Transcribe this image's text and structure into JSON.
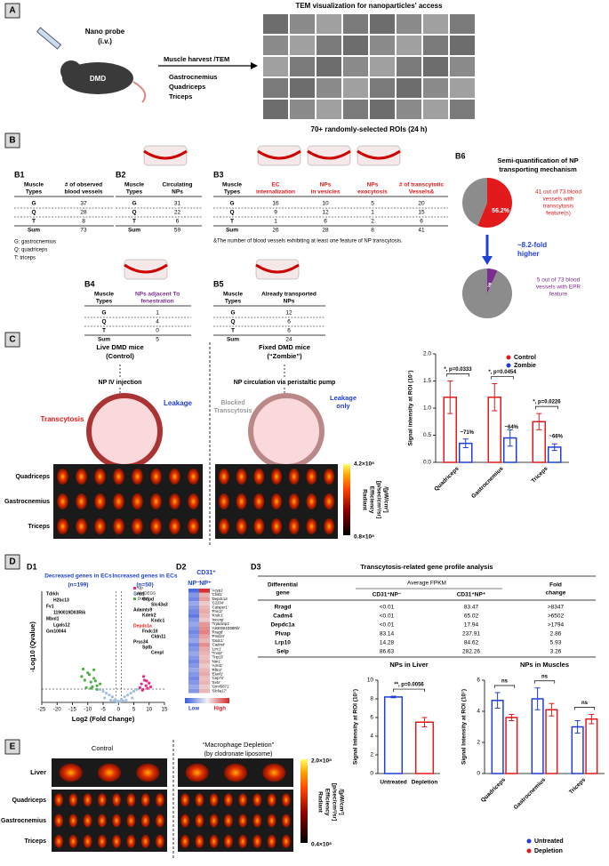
{
  "panel_labels": [
    "A",
    "B",
    "C",
    "D",
    "E"
  ],
  "A": {
    "probe": "Nano probe",
    "route": "(i.v.)",
    "mouse": "DMD",
    "arrow_text": "Muscle harvest /TEM",
    "muscles": [
      "Gastrocnemius",
      "Quadriceps",
      "Triceps"
    ],
    "tem_title": "TEM visualization for nanoparticles' access",
    "tem_caption": "70+ randomly-selected ROIs (24 h)"
  },
  "B": {
    "B1": {
      "label": "B1",
      "header": [
        [
          "Muscle",
          "Types"
        ],
        [
          "# of observed",
          "blood vessels"
        ]
      ],
      "rows": [
        [
          "G",
          37
        ],
        [
          "Q",
          28
        ],
        [
          "T",
          8
        ],
        [
          "Sum",
          73
        ]
      ],
      "notes": [
        "G: gastrocnemius",
        "Q: quadriceps",
        "T: triceps"
      ]
    },
    "B2": {
      "label": "B2",
      "header": [
        [
          "Muscle",
          "Types"
        ],
        [
          "Circulating",
          "NPs"
        ]
      ],
      "rows": [
        [
          "G",
          31
        ],
        [
          "Q",
          22
        ],
        [
          "T",
          6
        ],
        [
          "Sum",
          59
        ]
      ]
    },
    "B3": {
      "label": "B3",
      "header": [
        [
          "Muscle",
          "Types"
        ],
        [
          "EC",
          "internalization"
        ],
        [
          "NPs",
          "in vesicles"
        ],
        [
          "NPs",
          "exocytosis"
        ],
        [
          "# of transcytotic",
          "Vessels&"
        ]
      ],
      "rows": [
        [
          "G",
          16,
          10,
          5,
          20
        ],
        [
          "Q",
          9,
          12,
          1,
          15
        ],
        [
          "T",
          1,
          6,
          2,
          6
        ],
        [
          "Sum",
          26,
          28,
          8,
          41
        ]
      ],
      "note": "&The number of blood vessels exhibiting at least one feature of NP transcytosis."
    },
    "B4": {
      "label": "B4",
      "header": [
        [
          "Muscle",
          "Types"
        ],
        [
          "NPs adjacent To",
          "fenestration"
        ]
      ],
      "rows": [
        [
          "G",
          1
        ],
        [
          "Q",
          4
        ],
        [
          "T",
          0
        ],
        [
          "Sum",
          5
        ]
      ]
    },
    "B5": {
      "label": "B5",
      "header": [
        [
          "Muscle",
          "Types"
        ],
        [
          "Already transported",
          "NPs"
        ]
      ],
      "rows": [
        [
          "G",
          12
        ],
        [
          "Q",
          6
        ],
        [
          "T",
          6
        ],
        [
          "Sum",
          24
        ]
      ]
    },
    "B6": {
      "label": "B6",
      "title": [
        "Semi-quantification of NP",
        "transporting mechanism"
      ],
      "note_top": [
        "41 out of 73 blood",
        "vessels with",
        "transcytosis",
        "feature(s)"
      ],
      "fold": [
        "~8.2-fold",
        "higher"
      ],
      "note_bottom": [
        "5 out of 73 blood",
        "vessels with EPR",
        "feature"
      ]
    }
  },
  "C": {
    "left_title": [
      "Live DMD mice",
      "(Control)"
    ],
    "left_step": "NP IV injection",
    "transcytosis": "Transcytosis",
    "leakage": "Leakage",
    "right_title": [
      "Fixed DMD mice",
      "(“Zombie”)"
    ],
    "right_step": "NP circulation via peristaltic pump",
    "blocked": [
      "Blocked",
      "Transcytosis"
    ],
    "leakage_only": [
      "Leakage",
      "only"
    ],
    "rows": [
      "Quadriceps",
      "Gastrocnemius",
      "Triceps"
    ],
    "colorbar_max": "4.2×10⁸",
    "colorbar_min": "0.8×10⁸",
    "colorbar_label": [
      "Radiant",
      "Efficiency",
      "[p/sec/cm²/sr]",
      "/[µW/cm²]"
    ]
  },
  "D": {
    "D1": {
      "label": "D1",
      "left_title": "Decreased genes in ECs",
      "left_n": "(n=199)",
      "right_title": "Increased genes in ECs",
      "right_n": "(n=50)",
      "left_genes": [
        "Tdrkh",
        "H2bc13",
        "Fv1",
        "1190019D03Rik",
        "Mbnl1",
        "Lgals12",
        "Gm10044"
      ],
      "right_genes": [
        "Gnb1",
        "Gdpd",
        "Slc43a3",
        "Adamts9",
        "Kdelr2",
        "Kndc1",
        "Depdc1a",
        "Fndc10",
        "Cldn11",
        "Prss34",
        "Sptb",
        "Cenpl"
      ]
    },
    "D2": {
      "label": "D2",
      "group": "CD31⁺",
      "columns": [
        "NP⁻",
        "NP⁺"
      ],
      "genes": [
        "'Acyp1'",
        "'Chst1'",
        "'Depdc1a'",
        "'C2204'",
        "'Catsper1'",
        "'Pnrc2'",
        "'Kndc1'",
        "'Incenp'",
        "'Trp53inp1'",
        "'A930004D08Rik'",
        "'Rragd'",
        "'Prss34'",
        "'Gsdc1'",
        "'Cadm4'",
        "'Lrrc1'",
        "'Tnnt2'",
        "'Trip13'",
        "'Ntn1'",
        "'Armt1'",
        "'Rftn2'",
        "'Elavl1'",
        "'Cep72'",
        "'Setx'",
        "'Gm45871'",
        "'Slc6a17'"
      ],
      "values": [
        [
          -0.9,
          0.95
        ],
        [
          -0.6,
          0.3
        ],
        [
          -0.7,
          0.4
        ],
        [
          -0.5,
          0.2
        ],
        [
          -0.6,
          0.3
        ],
        [
          -0.7,
          0.35
        ],
        [
          -0.8,
          0.3
        ],
        [
          -0.6,
          0.2
        ],
        [
          -0.5,
          0.45
        ],
        [
          -0.6,
          0.5
        ],
        [
          -0.7,
          0.55
        ],
        [
          -0.6,
          0.4
        ],
        [
          -0.5,
          0.3
        ],
        [
          -0.7,
          0.5
        ],
        [
          -0.6,
          0.35
        ],
        [
          -0.5,
          0.3
        ],
        [
          -0.6,
          0.25
        ],
        [
          -0.7,
          0.3
        ],
        [
          -0.6,
          0.2
        ],
        [
          -0.5,
          0.3
        ],
        [
          -0.6,
          0.35
        ],
        [
          -0.7,
          0.25
        ],
        [
          -0.6,
          0.3
        ],
        [
          -0.5,
          0.2
        ],
        [
          -0.6,
          0.3
        ]
      ],
      "low": "Low",
      "high": "High"
    },
    "D3": {
      "label": "D3",
      "title": "Transcytosis-related gene profile analysis",
      "col_gene": [
        "Differential",
        "gene"
      ],
      "col_group": "Average FPKM",
      "col_a": "CD31⁺NP⁻",
      "col_b": "CD31⁺NP⁺",
      "col_fold": [
        "Fold",
        "change"
      ],
      "rows": [
        [
          "Rragd",
          "<0.01",
          "83.47",
          ">8347"
        ],
        [
          "Cadm4",
          "<0.01",
          "65.02",
          ">6502"
        ],
        [
          "Depdc1a",
          "<0.01",
          "17.94",
          ">1794"
        ],
        [
          "Plvap",
          "83.14",
          "237.91",
          "2.86"
        ],
        [
          "Lrp10",
          "14.28",
          "84.62",
          "5.93"
        ],
        [
          "Selp",
          "86.63",
          "282.26",
          "3.26"
        ]
      ]
    }
  },
  "E": {
    "control": "Control",
    "depletion": "“Macrophage Depletion”",
    "depletion_note": "(by clodronate liposome)",
    "rows": [
      "Liver",
      "Quadriceps",
      "Gastrocnemius",
      "Triceps"
    ],
    "colorbar_max": "2.0×10⁸",
    "colorbar_min": "0.4×10⁸",
    "colorbar_label": [
      "Radiant",
      "Efficiency",
      "[p/sec/cm²/sr]",
      "/[µW/cm²]"
    ]
  },
  "chart_data": [
    {
      "type": "pie",
      "values": [
        56.2,
        43.8
      ],
      "value_labels": [
        "56.2%",
        null
      ],
      "colors": [
        "#e31a1c",
        "#8c8c8c"
      ]
    },
    {
      "type": "pie",
      "values": [
        6.8,
        93.2
      ],
      "value_labels": [
        "6.8%",
        null
      ],
      "colors": [
        "#7b2d8e",
        "#8c8c8c"
      ]
    },
    {
      "type": "bar",
      "ylabel": "Signal intensity at ROI (10⁷)",
      "categories": [
        "Quadriceps",
        "Gastrocnemius",
        "Triceps"
      ],
      "series": [
        {
          "name": "Control",
          "color": "#e31a1c",
          "values": [
            1.2,
            1.2,
            0.75
          ],
          "errors": [
            0.3,
            0.25,
            0.15
          ]
        },
        {
          "name": "Zombie",
          "color": "#1f3fd6",
          "values": [
            0.35,
            0.45,
            0.28
          ],
          "errors": [
            0.08,
            0.15,
            0.06
          ]
        }
      ],
      "ylim": [
        0,
        2
      ],
      "yticks": [
        {
          "value": 0,
          "label": "0.0"
        },
        0.5,
        {
          "value": 1,
          "label": "1.0"
        },
        1.5,
        {
          "value": 2,
          "label": "2.0"
        }
      ],
      "annotations": [
        "*, p=0.0333",
        "*, p=0.0454",
        "*, p=0.0226",
        "~71%",
        "~64%",
        "~66%"
      ],
      "legend": "top-right"
    },
    {
      "type": "bar",
      "title": "NPs in Liver",
      "ylabel": "Signal Intensity at ROI (10⁷)",
      "categories": [
        "Untreated",
        "Depletion"
      ],
      "values": [
        8.2,
        5.5
      ],
      "errors": [
        0.08,
        0.5
      ],
      "colors": [
        "#1f3fd6",
        "#e31a1c"
      ],
      "ylim": [
        0,
        10
      ],
      "yticks": [
        0,
        2,
        4,
        6,
        8,
        10
      ],
      "annotations": [
        "**, p=0.0056"
      ]
    },
    {
      "type": "bar",
      "title": "NPs in Muscles",
      "ylabel": "Signal Intensity at ROI (10⁷)",
      "categories": [
        "Quadriceps",
        "Gastrocnemius",
        "Triceps"
      ],
      "series": [
        {
          "name": "Untreated",
          "color": "#1f3fd6",
          "values": [
            4.7,
            4.8,
            3.0
          ],
          "errors": [
            0.5,
            0.7,
            0.4
          ]
        },
        {
          "name": "Depletion",
          "color": "#e31a1c",
          "values": [
            3.6,
            4.1,
            3.5
          ],
          "errors": [
            0.2,
            0.4,
            0.3
          ]
        }
      ],
      "ylim": [
        0,
        6
      ],
      "yticks": [
        0,
        2,
        4,
        6
      ],
      "annotations": [
        "ns",
        "ns",
        "ns"
      ],
      "legend": "bottom"
    },
    {
      "type": "scatter",
      "xlabel": "Log2 (Fold Change)",
      "ylabel": "-Log10 (Qvalue)",
      "xlim": [
        -25,
        15
      ],
      "ylim": [
        0,
        30
      ],
      "xticks": [
        -25,
        -20,
        -15,
        -10,
        -5,
        0,
        5,
        10,
        15
      ],
      "series": [
        {
          "name": "Up",
          "color": "#e7298a",
          "x": [
            7,
            7.5,
            8,
            8.5,
            9,
            9.5,
            10,
            8.2,
            9.2,
            10.5,
            7.8
          ],
          "values": [
            4,
            5,
            3.5,
            6,
            4.5,
            3.8,
            5.2,
            7,
            5.8,
            4.2,
            3.3
          ]
        },
        {
          "name": "No-DEGS",
          "color": "#a6bddb",
          "x": [
            -6,
            -5,
            -4,
            -3,
            -2,
            -1,
            0,
            1,
            2,
            3,
            4,
            5,
            6,
            -4.5,
            -2.5,
            -0.5,
            0.5,
            2.5,
            4.5,
            -1.5,
            1.5
          ],
          "values": [
            3.5,
            3,
            2.5,
            2,
            1.5,
            0.8,
            0.3,
            0.8,
            1.5,
            2,
            2.5,
            3,
            3.5,
            1.2,
            0.6,
            0.2,
            0.2,
            0.6,
            1.2,
            0.4,
            0.4
          ]
        },
        {
          "name": "Down",
          "color": "#4daf4a",
          "x": [
            -12,
            -11,
            -10,
            -9,
            -8,
            -7,
            -6,
            -10.5,
            -9.5,
            -8.5,
            -7.5,
            -11.5,
            -8,
            -9,
            -7
          ],
          "values": [
            7,
            6,
            8,
            5.5,
            6.5,
            4.5,
            5,
            4,
            7.5,
            4.2,
            5.8,
            9,
            8.8,
            3.8,
            3.5
          ]
        }
      ]
    }
  ]
}
